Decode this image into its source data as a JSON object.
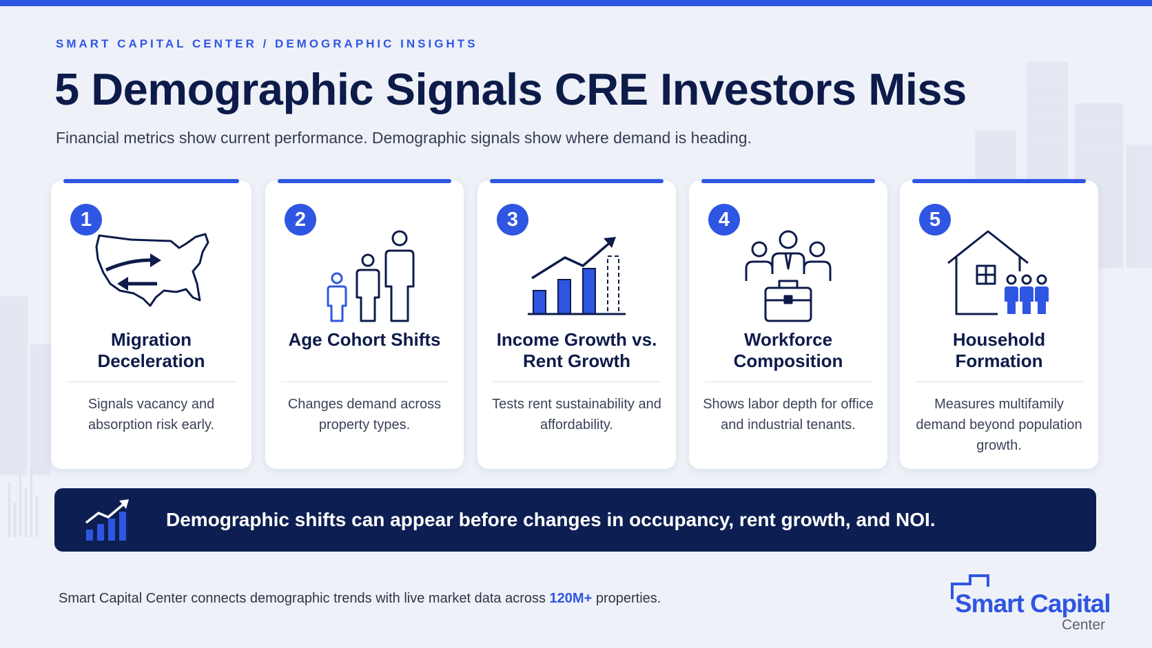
{
  "header": {
    "eyebrow": "SMART CAPITAL CENTER / DEMOGRAPHIC INSIGHTS",
    "title": "5 Demographic Signals CRE Investors Miss",
    "subtitle": "Financial metrics show current performance. Demographic signals show where demand is heading."
  },
  "cards": [
    {
      "number": "1",
      "icon": "us-map-migration-icon",
      "title": "Migration Deceleration",
      "description": "Signals vacancy and absorption risk early."
    },
    {
      "number": "2",
      "icon": "age-cohort-people-icon",
      "title": "Age Cohort Shifts",
      "description": "Changes demand across property types."
    },
    {
      "number": "3",
      "icon": "growth-bar-chart-icon",
      "title": "Income Growth vs. Rent Growth",
      "description": "Tests rent sustainability and affordability."
    },
    {
      "number": "4",
      "icon": "workforce-briefcase-icon",
      "title": "Workforce Composition",
      "description": "Shows labor depth for office and industrial tenants."
    },
    {
      "number": "5",
      "icon": "house-family-icon",
      "title": "Household Formation",
      "description": "Measures multifamily demand beyond population growth."
    }
  ],
  "banner": {
    "icon": "trend-chart-icon",
    "text": "Demographic shifts can appear before changes in occupancy, rent growth, and NOI."
  },
  "footer": {
    "text_before": "Smart Capital Center connects demographic trends with live market data across ",
    "highlight": "120M+",
    "text_after": " properties."
  },
  "logo": {
    "name": "Smart Capital",
    "sub": "Center"
  },
  "colors": {
    "accent": "#2f56e2",
    "navy": "#0d1b4a",
    "banner": "#0d1f52",
    "background": "#eef1f7"
  }
}
